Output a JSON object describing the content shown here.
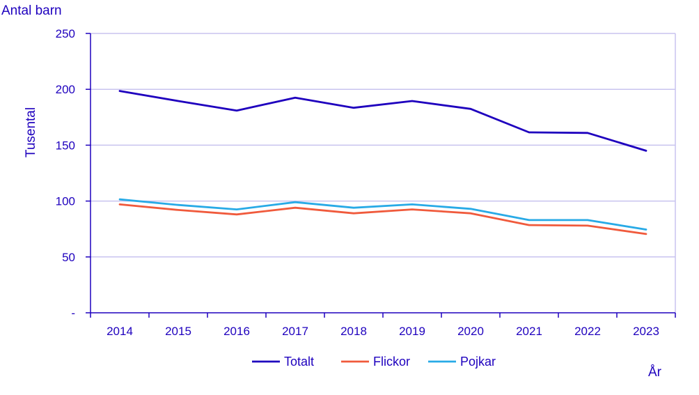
{
  "chart_data": {
    "type": "line",
    "title": "Antal barn",
    "ylabel": "Tusental",
    "xlabel": "År",
    "ylim": [
      0,
      250
    ],
    "yticks": [
      {
        "value": 0,
        "label": "-"
      },
      {
        "value": 50,
        "label": "50"
      },
      {
        "value": 100,
        "label": "100"
      },
      {
        "value": 150,
        "label": "150"
      },
      {
        "value": 200,
        "label": "200"
      },
      {
        "value": 250,
        "label": "250"
      }
    ],
    "grid": true,
    "legend_position": "bottom",
    "categories": [
      "2014",
      "2015",
      "2016",
      "2017",
      "2018",
      "2019",
      "2020",
      "2021",
      "2022",
      "2023"
    ],
    "series": [
      {
        "name": "Totalt",
        "color": "#1e00be",
        "values": [
          198.5,
          189.5,
          181,
          192.5,
          183.5,
          189.5,
          182.5,
          161.5,
          161,
          145
        ]
      },
      {
        "name": "Flickor",
        "color": "#f05a3c",
        "values": [
          97,
          92,
          88,
          94,
          89,
          92.5,
          89,
          78.5,
          78,
          70.5
        ]
      },
      {
        "name": "Pojkar",
        "color": "#28aae6",
        "values": [
          101.5,
          96.5,
          92.5,
          99,
          94,
          97,
          93,
          83,
          83,
          74.5
        ]
      }
    ]
  }
}
